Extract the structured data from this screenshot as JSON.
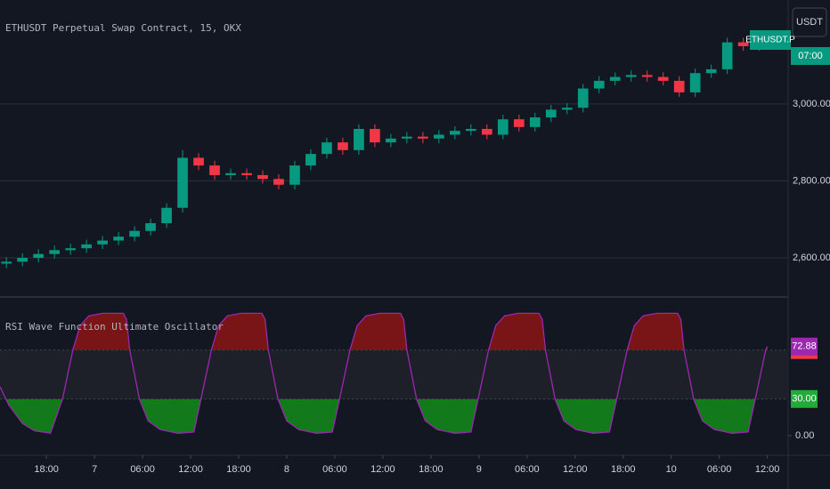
{
  "chart_data": [
    {
      "type": "candlestick",
      "title": "ETHUSDT Perpetual Swap Contract, 15, OKX",
      "up_color": "#089981",
      "down_color": "#f23645",
      "x": [
        13,
        15,
        17,
        19,
        21,
        23,
        25,
        27,
        29,
        31,
        33,
        35,
        37,
        39,
        41,
        43,
        45,
        47,
        49,
        51,
        53,
        55,
        57,
        59,
        61,
        63,
        65,
        67,
        69,
        71,
        73,
        75,
        77,
        79,
        81,
        83,
        85,
        87,
        89,
        91,
        93,
        95,
        97,
        99,
        101,
        103,
        105,
        107
      ],
      "open": [
        2585,
        2590,
        2600,
        2610,
        2620,
        2625,
        2635,
        2645,
        2655,
        2670,
        2690,
        2730,
        2860,
        2840,
        2815,
        2820,
        2815,
        2805,
        2790,
        2840,
        2870,
        2900,
        2880,
        2935,
        2900,
        2910,
        2915,
        2910,
        2920,
        2930,
        2935,
        2920,
        2960,
        2940,
        2965,
        2985,
        2990,
        3040,
        3060,
        3070,
        3075,
        3070,
        3060,
        3030,
        3080,
        3090,
        3160,
        3150
      ],
      "high": [
        2602,
        2612,
        2622,
        2632,
        2637,
        2647,
        2657,
        2667,
        2682,
        2702,
        2742,
        2880,
        2872,
        2852,
        2832,
        2832,
        2827,
        2817,
        2852,
        2882,
        2912,
        2912,
        2947,
        2947,
        2922,
        2927,
        2927,
        2932,
        2942,
        2947,
        2947,
        2972,
        2972,
        2977,
        2997,
        3002,
        3052,
        3072,
        3082,
        3087,
        3087,
        3082,
        3072,
        3092,
        3102,
        3172,
        3172,
        3172
      ],
      "low": [
        2573,
        2578,
        2588,
        2598,
        2608,
        2613,
        2623,
        2633,
        2643,
        2658,
        2678,
        2718,
        2828,
        2803,
        2803,
        2803,
        2793,
        2778,
        2778,
        2828,
        2858,
        2868,
        2868,
        2888,
        2888,
        2898,
        2898,
        2898,
        2908,
        2918,
        2908,
        2908,
        2928,
        2928,
        2953,
        2973,
        2978,
        3028,
        3048,
        3058,
        3058,
        3048,
        3018,
        3018,
        3068,
        3078,
        3138,
        3138
      ],
      "close": [
        2590,
        2600,
        2610,
        2620,
        2625,
        2635,
        2645,
        2655,
        2670,
        2690,
        2730,
        2860,
        2840,
        2815,
        2820,
        2815,
        2805,
        2790,
        2840,
        2870,
        2900,
        2880,
        2935,
        2900,
        2910,
        2915,
        2910,
        2920,
        2930,
        2935,
        2920,
        2960,
        2940,
        2965,
        2985,
        2990,
        3040,
        3060,
        3070,
        3075,
        3070,
        3060,
        3030,
        3080,
        3090,
        3160,
        3150,
        3160
      ],
      "xlim": [
        12.2,
        110.6
      ],
      "ylim": [
        2503,
        3270
      ],
      "yticks": [
        {
          "value": 2600,
          "label": "2,600.00"
        },
        {
          "value": 2800,
          "label": "2,800.00"
        },
        {
          "value": 3000,
          "label": "3,000.00"
        }
      ],
      "symbol_tag": "ETHUSDT.P",
      "countdown": "07:00",
      "grid": true
    },
    {
      "type": "line",
      "title": "RSI Wave Function Ultimate Oscillator",
      "color": "#9c27b0",
      "x": [
        12.2,
        13.3,
        15,
        16.5,
        18.5,
        20,
        21.3,
        22.2,
        23.3,
        25,
        27.6,
        28,
        28.4,
        29.6,
        30.7,
        32.2,
        34.4,
        36.4,
        37.3,
        38.6,
        39.5,
        40.6,
        42.3,
        44.9,
        45.3,
        45.7,
        46.9,
        48,
        49.5,
        51.7,
        53.7,
        54.6,
        55.9,
        56.8,
        57.9,
        59.6,
        62.2,
        62.6,
        63,
        64.2,
        65.3,
        66.8,
        69,
        71,
        71.9,
        73.2,
        74.1,
        75.2,
        76.9,
        79.5,
        79.9,
        80.3,
        81.5,
        82.6,
        84.1,
        86.3,
        88.3,
        89.2,
        90.5,
        91.4,
        92.5,
        94.2,
        96.8,
        97.2,
        97.6,
        98.8,
        99.9,
        101.4,
        103.6,
        105.6,
        106.5,
        107.8,
        108
      ],
      "values": [
        40,
        25,
        10,
        4,
        2,
        30,
        70,
        90,
        98,
        100,
        100,
        95,
        70,
        30,
        12,
        5,
        2,
        3,
        30,
        70,
        90,
        98,
        100,
        100,
        95,
        70,
        30,
        12,
        5,
        2,
        3,
        30,
        70,
        90,
        98,
        100,
        100,
        95,
        70,
        30,
        12,
        5,
        2,
        3,
        30,
        70,
        90,
        98,
        100,
        100,
        95,
        70,
        30,
        12,
        5,
        2,
        3,
        30,
        70,
        90,
        98,
        100,
        100,
        95,
        70,
        30,
        12,
        5,
        2,
        3,
        30,
        70,
        72.88
      ],
      "last_value": 72.88,
      "levels": [
        {
          "value": 70,
          "label": "70.00",
          "color": "#f23645",
          "fill": "#7a1517"
        },
        {
          "value": 30,
          "label": "30.00",
          "color": "#22ab3a",
          "fill": "#137a1c"
        }
      ],
      "xlim": [
        12.2,
        110.6
      ],
      "ylim": [
        -14.5,
        110.5
      ],
      "yticks": [
        {
          "value": 0,
          "label": "0.00"
        }
      ],
      "xticks": [
        {
          "value": 18,
          "label": "18:00"
        },
        {
          "value": 24,
          "label": "7"
        },
        {
          "value": 30,
          "label": "06:00"
        },
        {
          "value": 36,
          "label": "12:00"
        },
        {
          "value": 42,
          "label": "18:00"
        },
        {
          "value": 48,
          "label": "8"
        },
        {
          "value": 54,
          "label": "06:00"
        },
        {
          "value": 60,
          "label": "12:00"
        },
        {
          "value": 66,
          "label": "18:00"
        },
        {
          "value": 72,
          "label": "9"
        },
        {
          "value": 78,
          "label": "06:00"
        },
        {
          "value": 84,
          "label": "12:00"
        },
        {
          "value": 90,
          "label": "18:00"
        },
        {
          "value": 96,
          "label": "10"
        },
        {
          "value": 102,
          "label": "06:00"
        },
        {
          "value": 108,
          "label": "12:00"
        }
      ]
    }
  ],
  "ui": {
    "currency_button": "USDT"
  }
}
